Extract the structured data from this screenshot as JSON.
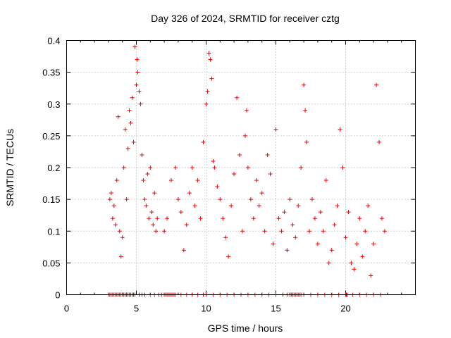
{
  "colors": {
    "series": "#ee0000",
    "axis": "#000000",
    "grid": "#a0a0a0",
    "background": "#ffffff"
  },
  "chart_data": {
    "type": "scatter",
    "title": "Day 326 of 2024, SRMTID for receiver cztg",
    "xlabel": "GPS time / hours",
    "ylabel": "SRMTID / TECUs",
    "xlim": [
      0,
      25
    ],
    "ylim": [
      0,
      0.4
    ],
    "xticks": [
      0,
      5,
      10,
      15,
      20
    ],
    "xtick_labels": [
      "0",
      "5",
      "10",
      "15",
      "20"
    ],
    "yticks": [
      0,
      0.05,
      0.1,
      0.15,
      0.2,
      0.25,
      0.3,
      0.35,
      0.4
    ],
    "ytick_labels": [
      "0",
      "0.05",
      "0.1",
      "0.15",
      "0.2",
      "0.25",
      "0.3",
      "0.35",
      "0.4"
    ],
    "grid": true,
    "marker": "plus",
    "series": [
      {
        "name": "SRMTID",
        "x": [
          3.1,
          3.2,
          3.3,
          3.4,
          3.5,
          3.6,
          3.7,
          3.8,
          3.9,
          4.0,
          4.1,
          4.2,
          4.3,
          4.4,
          4.5,
          4.6,
          4.7,
          4.8,
          4.9,
          5.0,
          5.05,
          5.1,
          5.2,
          5.3,
          5.4,
          5.5,
          5.6,
          5.7,
          5.8,
          5.9,
          6.0,
          6.1,
          6.2,
          6.3,
          6.4,
          6.5,
          7.0,
          7.2,
          7.5,
          7.8,
          8.0,
          8.2,
          8.4,
          8.6,
          8.8,
          9.0,
          9.2,
          9.4,
          9.6,
          9.8,
          10.0,
          10.1,
          10.2,
          10.3,
          10.4,
          10.5,
          10.6,
          10.8,
          11.0,
          11.2,
          11.4,
          11.6,
          11.8,
          12.0,
          12.2,
          12.4,
          12.6,
          12.8,
          12.9,
          13.0,
          13.2,
          13.4,
          13.6,
          13.8,
          14.0,
          14.2,
          14.4,
          14.6,
          14.8,
          15.0,
          15.2,
          15.4,
          15.6,
          15.8,
          16.0,
          16.2,
          16.4,
          16.6,
          16.8,
          17.0,
          17.1,
          17.2,
          17.4,
          17.6,
          17.8,
          18.0,
          18.2,
          18.4,
          18.6,
          18.8,
          19.0,
          19.2,
          19.4,
          19.6,
          19.8,
          20.0,
          20.2,
          20.4,
          20.6,
          20.8,
          21.0,
          21.2,
          21.4,
          21.6,
          21.8,
          22.0,
          22.2,
          22.4,
          22.6,
          22.8
        ],
        "y": [
          0.15,
          0.16,
          0.12,
          0.14,
          0.11,
          0.18,
          0.28,
          0.1,
          0.06,
          0.09,
          0.2,
          0.26,
          0.15,
          0.23,
          0.29,
          0.27,
          0.31,
          0.24,
          0.39,
          0.33,
          0.37,
          0.35,
          0.32,
          0.3,
          0.22,
          0.18,
          0.15,
          0.14,
          0.19,
          0.12,
          0.2,
          0.13,
          0.11,
          0.16,
          0.1,
          0.12,
          0.1,
          0.12,
          0.18,
          0.2,
          0.15,
          0.13,
          0.07,
          0.11,
          0.16,
          0.2,
          0.14,
          0.18,
          0.12,
          0.24,
          0.3,
          0.32,
          0.38,
          0.37,
          0.34,
          0.21,
          0.2,
          0.17,
          0.15,
          0.12,
          0.09,
          0.06,
          0.14,
          0.19,
          0.31,
          0.22,
          0.1,
          0.25,
          0.29,
          0.2,
          0.15,
          0.12,
          0.18,
          0.14,
          0.16,
          0.1,
          0.22,
          0.19,
          0.08,
          0.26,
          0.12,
          0.1,
          0.13,
          0.07,
          0.15,
          0.11,
          0.09,
          0.14,
          0.2,
          0.33,
          0.29,
          0.24,
          0.1,
          0.15,
          0.12,
          0.08,
          0.13,
          0.1,
          0.18,
          0.05,
          0.07,
          0.11,
          0.14,
          0.26,
          0.2,
          0.09,
          0.13,
          0.05,
          0.04,
          0.08,
          0.12,
          0.06,
          0.1,
          0.14,
          0.03,
          0.08,
          0.33,
          0.24,
          0.12,
          0.1
        ],
        "zeros_x": [
          3.0,
          3.1,
          3.2,
          3.3,
          3.4,
          3.5,
          3.6,
          3.7,
          3.8,
          3.9,
          4.0,
          4.1,
          4.2,
          4.3,
          4.4,
          4.5,
          4.6,
          4.7,
          4.8,
          4.9,
          5.2,
          5.4,
          5.6,
          6.0,
          6.3,
          6.6,
          6.8,
          7.0,
          7.1,
          7.2,
          7.3,
          7.4,
          7.5,
          7.6,
          7.7,
          7.8,
          8.2,
          8.6,
          9.0,
          9.4,
          9.8,
          10.0,
          10.5,
          11.0,
          11.5,
          12.0,
          12.5,
          13.0,
          13.5,
          14.0,
          14.5,
          15.0,
          15.5,
          15.8,
          16.0,
          16.1,
          16.2,
          16.3,
          16.4,
          16.5,
          16.6,
          16.7,
          16.8,
          17.0,
          17.5,
          18.0,
          18.5,
          19.0,
          19.5,
          20.0,
          20.05,
          20.1,
          20.5,
          21.0,
          21.5,
          22.0,
          22.5
        ]
      }
    ]
  }
}
